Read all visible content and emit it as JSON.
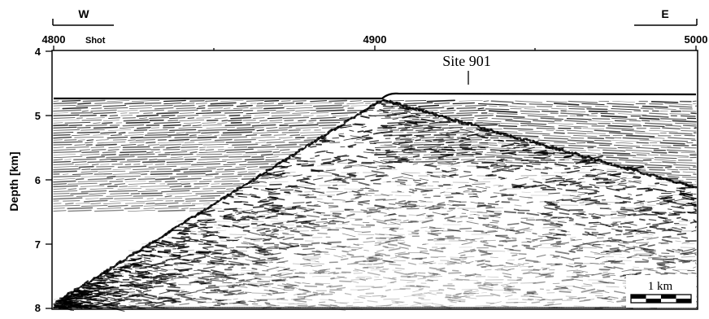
{
  "figure": {
    "direction_left": "W",
    "direction_right": "E",
    "shot_label": "Shot",
    "x_ticks": [
      "4800",
      "4900",
      "5000"
    ],
    "y_label": "Depth [km]",
    "y_ticks": [
      "4",
      "5",
      "6",
      "7",
      "8"
    ],
    "site_label": "Site 901",
    "scale_label": "1 km"
  },
  "colors": {
    "ink": "#000000",
    "paper": "#ffffff"
  },
  "content": {
    "type": "seismic-reflection-depth-section",
    "shot_range": [
      4800,
      5000
    ],
    "depth_range_km": [
      4,
      8
    ]
  }
}
